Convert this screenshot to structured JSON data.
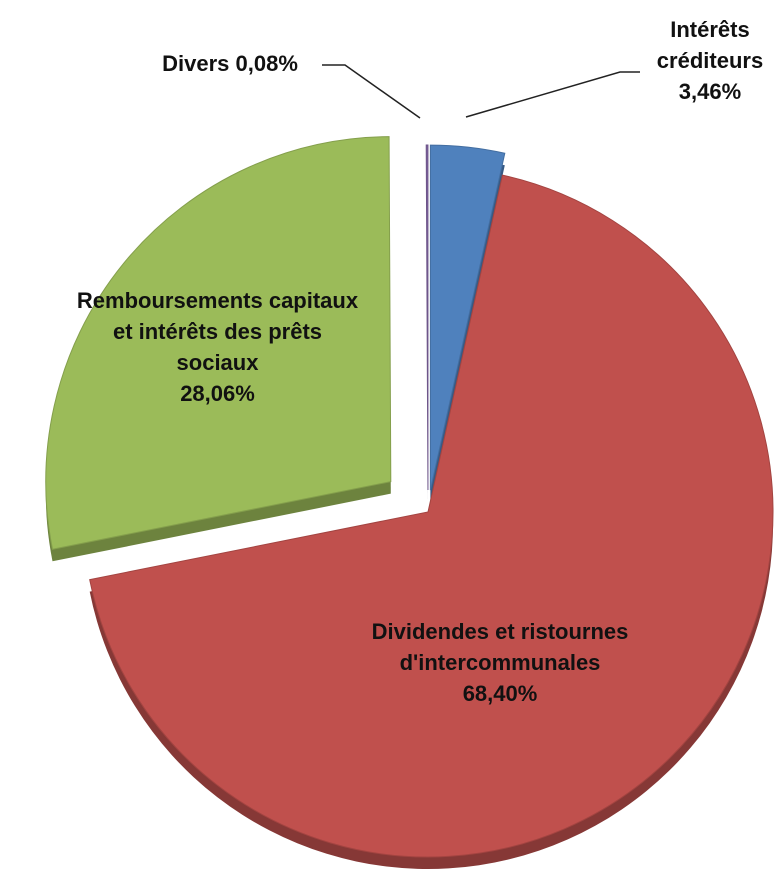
{
  "chart_data": {
    "type": "pie",
    "categories": [
      "Intérêts créditeurs",
      "Dividendes et ristournes d'intercommunales",
      "Remboursements capitaux et intérêts des prêts sociaux",
      "Divers"
    ],
    "values": [
      3.46,
      68.4,
      28.06,
      0.08
    ],
    "value_labels": [
      "3,46%",
      "68,40%",
      "28,06%",
      "0,08%"
    ],
    "colors": [
      "#4f81bd",
      "#c0504d",
      "#9bbb59",
      "#8064a2"
    ]
  }
}
